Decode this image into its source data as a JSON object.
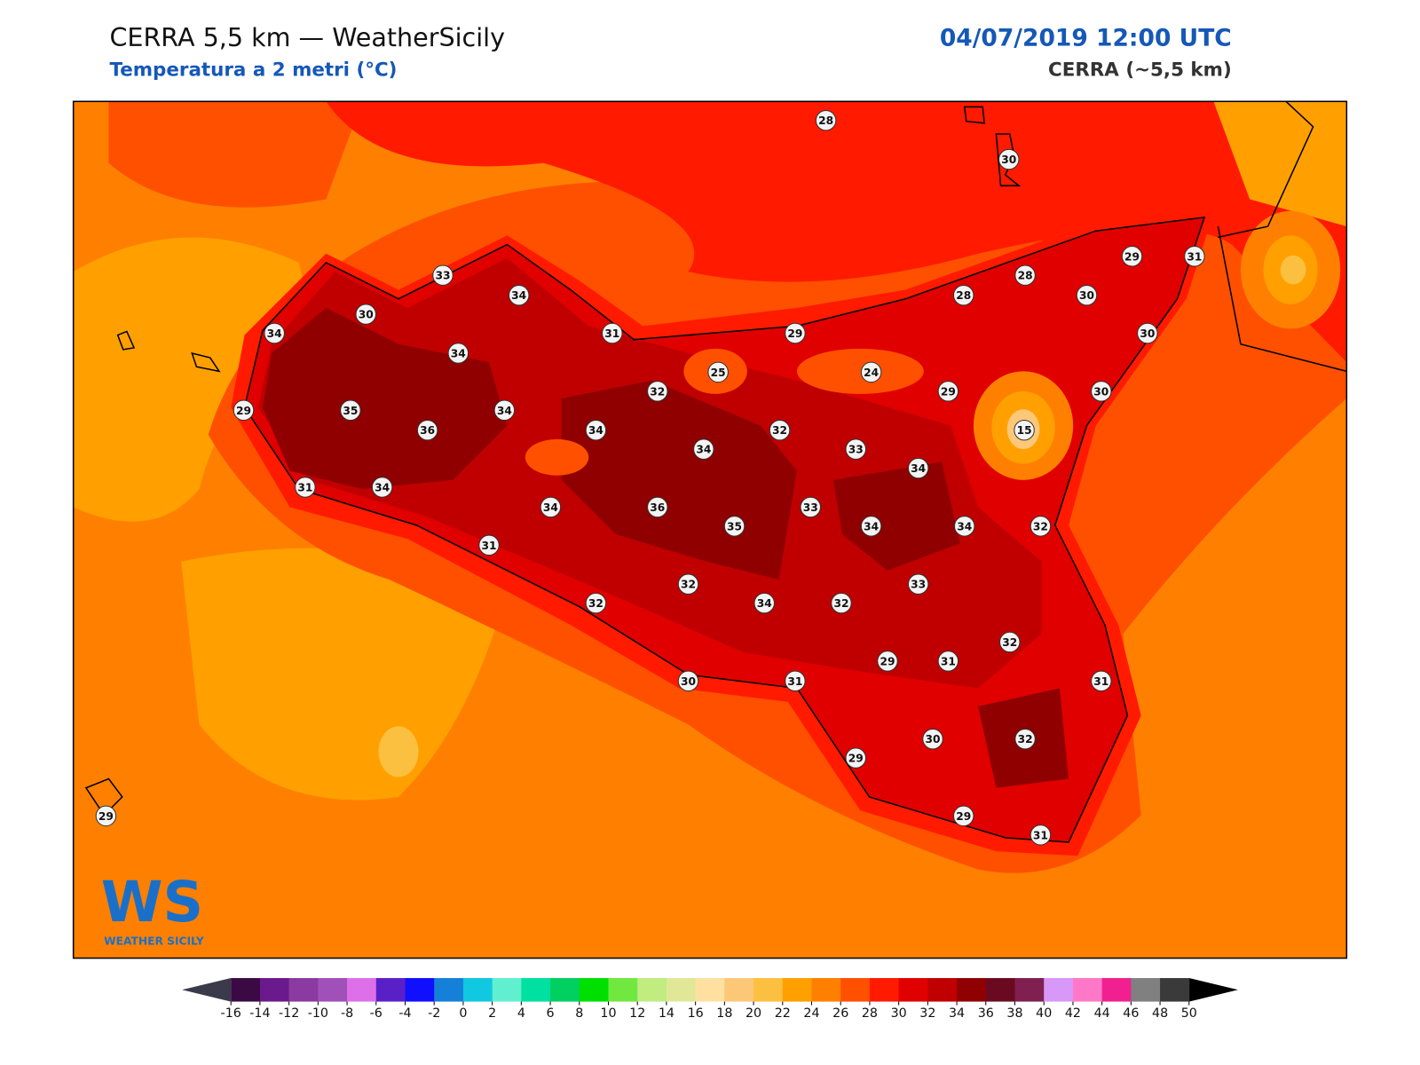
{
  "header": {
    "title": "CERRA 5,5 km — WeatherSicily",
    "subtitle": "Temperatura a 2 metri (°C)",
    "date": "04/07/2019 12:00 UTC",
    "model": "CERRA (~5,5 km)"
  },
  "logo": {
    "initials": "WS",
    "name": "WEATHER SICILY"
  },
  "stations": [
    28,
    30,
    33,
    34,
    30,
    34,
    31,
    29,
    28,
    28,
    30,
    29,
    31,
    30,
    34,
    25,
    24,
    29,
    30,
    29,
    35,
    36,
    34,
    32,
    34,
    32,
    15,
    34,
    33,
    34,
    31,
    34,
    34,
    36,
    35,
    33,
    34,
    34,
    32,
    31,
    32,
    33,
    32,
    34,
    32,
    32,
    29,
    31,
    30,
    31,
    31,
    30,
    32,
    29,
    29,
    29,
    31
  ],
  "colorbar": {
    "ticks": [
      -16,
      -14,
      -12,
      -10,
      -8,
      -6,
      -4,
      -2,
      0,
      2,
      4,
      6,
      8,
      10,
      12,
      14,
      16,
      18,
      20,
      22,
      24,
      26,
      28,
      30,
      32,
      34,
      36,
      38,
      40,
      42,
      44,
      46,
      48,
      50
    ],
    "colors": [
      "#3b0a45",
      "#6a1a8c",
      "#8a3aa0",
      "#a050b8",
      "#dd70e8",
      "#5a20c8",
      "#1010ff",
      "#1580d8",
      "#10c8e0",
      "#60f0d0",
      "#00e0a0",
      "#00d060",
      "#00e000",
      "#70e840",
      "#c0ec80",
      "#e0e898",
      "#ffe0a0",
      "#fcc878",
      "#fcc040",
      "#ffa000",
      "#ff8000",
      "#ff5000",
      "#ff1a00",
      "#e00000",
      "#c00000",
      "#900000",
      "#6a0a20",
      "#802050",
      "#d898f8",
      "#ff78c8",
      "#f02090",
      "#808080",
      "#3a3a3a"
    ],
    "under_color": "#3a3a4a",
    "over_color": "#000000"
  }
}
